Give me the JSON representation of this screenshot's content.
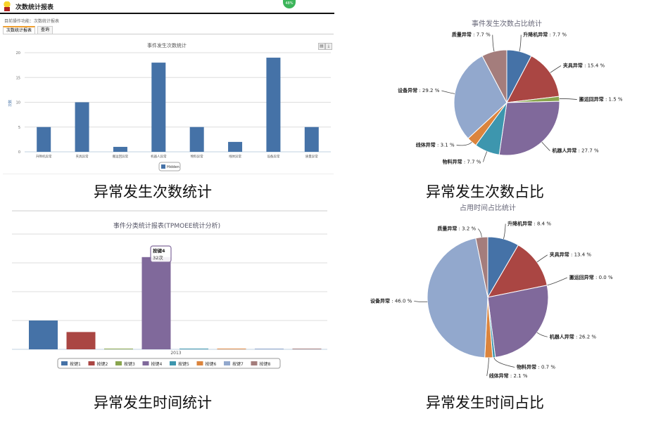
{
  "app": {
    "title": "次数统计报表",
    "breadcrumb": "目前操作功能：次数统计报表",
    "tabs": [
      "次数统计报表",
      "查询"
    ],
    "toolbar_icons": [
      "print-icon",
      "download-icon"
    ],
    "badge_percent": "48%"
  },
  "captions": [
    "异常发生次数统计",
    "异常发生次数占比",
    "异常发生时间统计",
    "异常发生时间占比"
  ],
  "chart_data": [
    {
      "type": "bar",
      "title": "事件发生次数统计",
      "ylabel": "次数",
      "categories": [
        "升降机异常",
        "夹具异常",
        "搬运回异常",
        "机器人异常",
        "物料异常",
        "线体异常",
        "设备异常",
        "质量异常"
      ],
      "series": [
        {
          "name": "Hidden",
          "values": [
            5,
            10,
            1,
            18,
            5,
            2,
            19,
            5
          ]
        }
      ],
      "yticks": [
        0,
        5,
        10,
        15,
        20
      ],
      "ylim": [
        0,
        20
      ],
      "grid": true,
      "legend": "bottom",
      "color": "#4572A7"
    },
    {
      "type": "pie",
      "title": "事件发生次数占比统计",
      "labels": [
        "升降机异常",
        "夹具异常",
        "搬运回异常",
        "机器人异常",
        "物料异常",
        "线体异常",
        "设备异常",
        "质量异常"
      ],
      "values": [
        7.7,
        15.4,
        1.5,
        27.7,
        7.7,
        3.1,
        29.2,
        7.7
      ],
      "colors": [
        "#4572A7",
        "#AA4643",
        "#89A54E",
        "#80699B",
        "#3D96AE",
        "#DB843D",
        "#92A8CD",
        "#A47D7C"
      ]
    },
    {
      "type": "bar",
      "title": "事件分类统计报表(TPMOEE统计分析)",
      "categories": [
        "2013"
      ],
      "series": [
        {
          "name": "按键1",
          "values": [
            10
          ]
        },
        {
          "name": "按键2",
          "values": [
            6
          ]
        },
        {
          "name": "按键3",
          "values": [
            0
          ]
        },
        {
          "name": "按键4",
          "values": [
            32
          ]
        },
        {
          "name": "按键5",
          "values": [
            0
          ]
        },
        {
          "name": "按键6",
          "values": [
            0
          ]
        },
        {
          "name": "按键7",
          "values": [
            0
          ]
        },
        {
          "name": "按键8",
          "values": [
            0
          ]
        }
      ],
      "colors": [
        "#4572A7",
        "#AA4643",
        "#89A54E",
        "#80699B",
        "#3D96AE",
        "#DB843D",
        "#92A8CD",
        "#A47D7C"
      ],
      "ylim": [
        0,
        40
      ],
      "grid": true,
      "legend": "bottom",
      "tooltip": {
        "title": "按键4",
        "value": "32次"
      }
    },
    {
      "type": "pie",
      "title": "占用时间占比统计",
      "labels": [
        "升降机异常",
        "夹具异常",
        "搬运回异常",
        "机器人异常",
        "物料异常",
        "线体异常",
        "设备异常",
        "质量异常"
      ],
      "values": [
        8.4,
        13.4,
        0.0,
        26.2,
        0.7,
        2.1,
        46.0,
        3.2
      ],
      "colors": [
        "#4572A7",
        "#AA4643",
        "#89A54E",
        "#80699B",
        "#3D96AE",
        "#DB843D",
        "#92A8CD",
        "#A47D7C"
      ]
    }
  ]
}
